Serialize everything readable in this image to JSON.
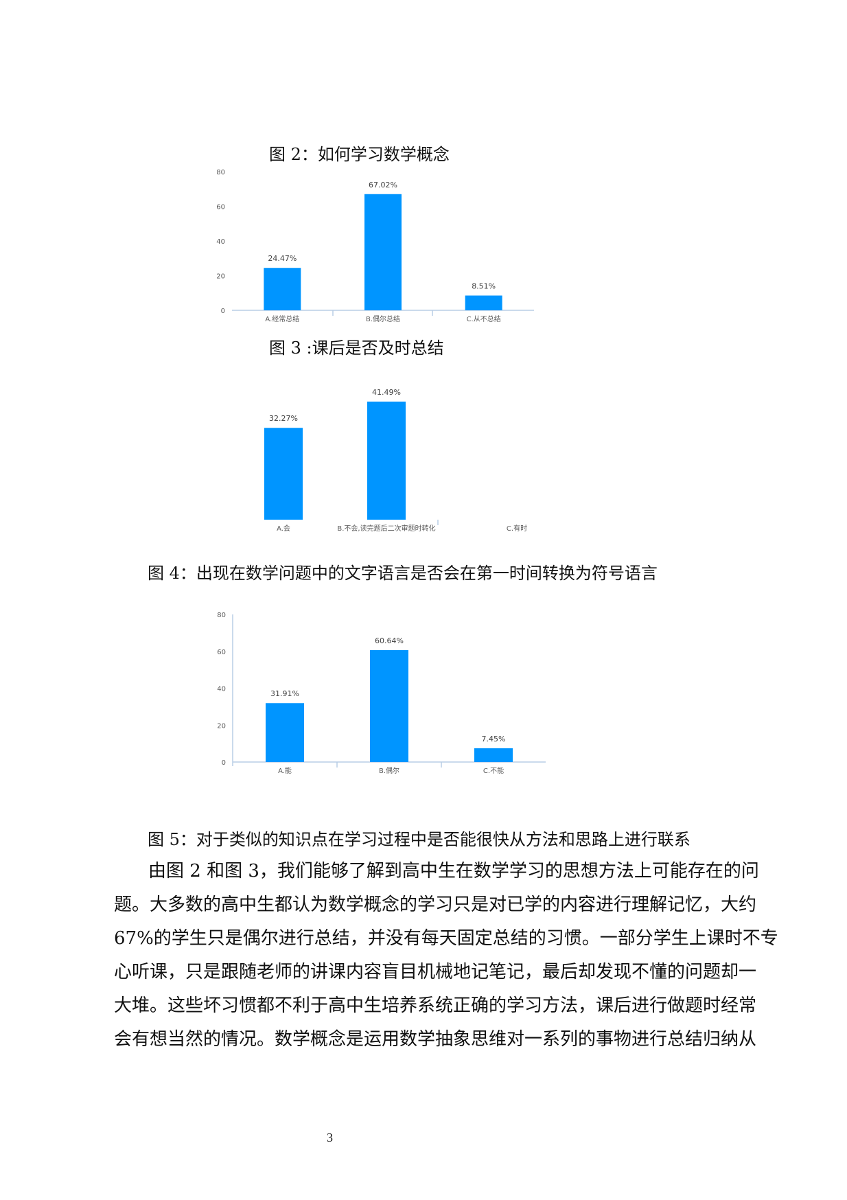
{
  "captions": {
    "fig2": "图 2：如何学习数学概念",
    "fig3": "图 3 :课后是否及时总结",
    "fig4": "图 4：出现在数学问题中的文字语言是否会在第一时间转换为符号语言",
    "fig5": "图 5：对于类似的知识点在学习过程中是否能很快从方法和思路上进行联系"
  },
  "paragraph": [
    "由图 2 和图 3，我们能够了解到高中生在数学学习的思想方法上可能存在的问",
    "题。大多数的高中生都认为数学概念的学习只是对已学的内容进行理解记忆，大约",
    "67%的学生只是偶尔进行总结，并没有每天固定总结的习惯。一部分学生上课时不专",
    "心听课，只是跟随老师的讲课内容盲目机械地记笔记，最后却发现不懂的问题却一",
    "大堆。这些坏习惯都不利于高中生培养系统正确的学习方法，课后进行做题时经常",
    "会有想当然的情况。数学概念是运用数学抽象思维对一系列的事物进行总结归纳从"
  ],
  "page_number": "3",
  "chart_data": [
    {
      "type": "bar",
      "categories": [
        "A.经常总结",
        "B.偶尔总结",
        "C.从不总结"
      ],
      "values": [
        24.47,
        67.02,
        8.51
      ],
      "data_labels": [
        "24.47%",
        "67.02%",
        "8.51%"
      ],
      "yticks": [
        "0",
        "20",
        "40",
        "60",
        "80"
      ],
      "ylim": [
        0,
        80
      ],
      "grid": false,
      "bar_color": "#0095ff"
    },
    {
      "type": "bar",
      "categories": [
        "A.会",
        "B.不会,读完题后二次审题时转化",
        "C.有时"
      ],
      "values": [
        32.27,
        41.49,
        null
      ],
      "data_labels": [
        "32.27%",
        "41.49%",
        ""
      ],
      "grid": false,
      "bar_color": "#0095ff"
    },
    {
      "type": "bar",
      "categories": [
        "A.能",
        "B.偶尔",
        "C.不能"
      ],
      "values": [
        31.91,
        60.64,
        7.45
      ],
      "data_labels": [
        "31.91%",
        "60.64%",
        "7.45%"
      ],
      "yticks": [
        "0",
        "20",
        "40",
        "60",
        "80"
      ],
      "ylim": [
        0,
        80
      ],
      "grid": false,
      "bar_color": "#0095ff"
    }
  ]
}
